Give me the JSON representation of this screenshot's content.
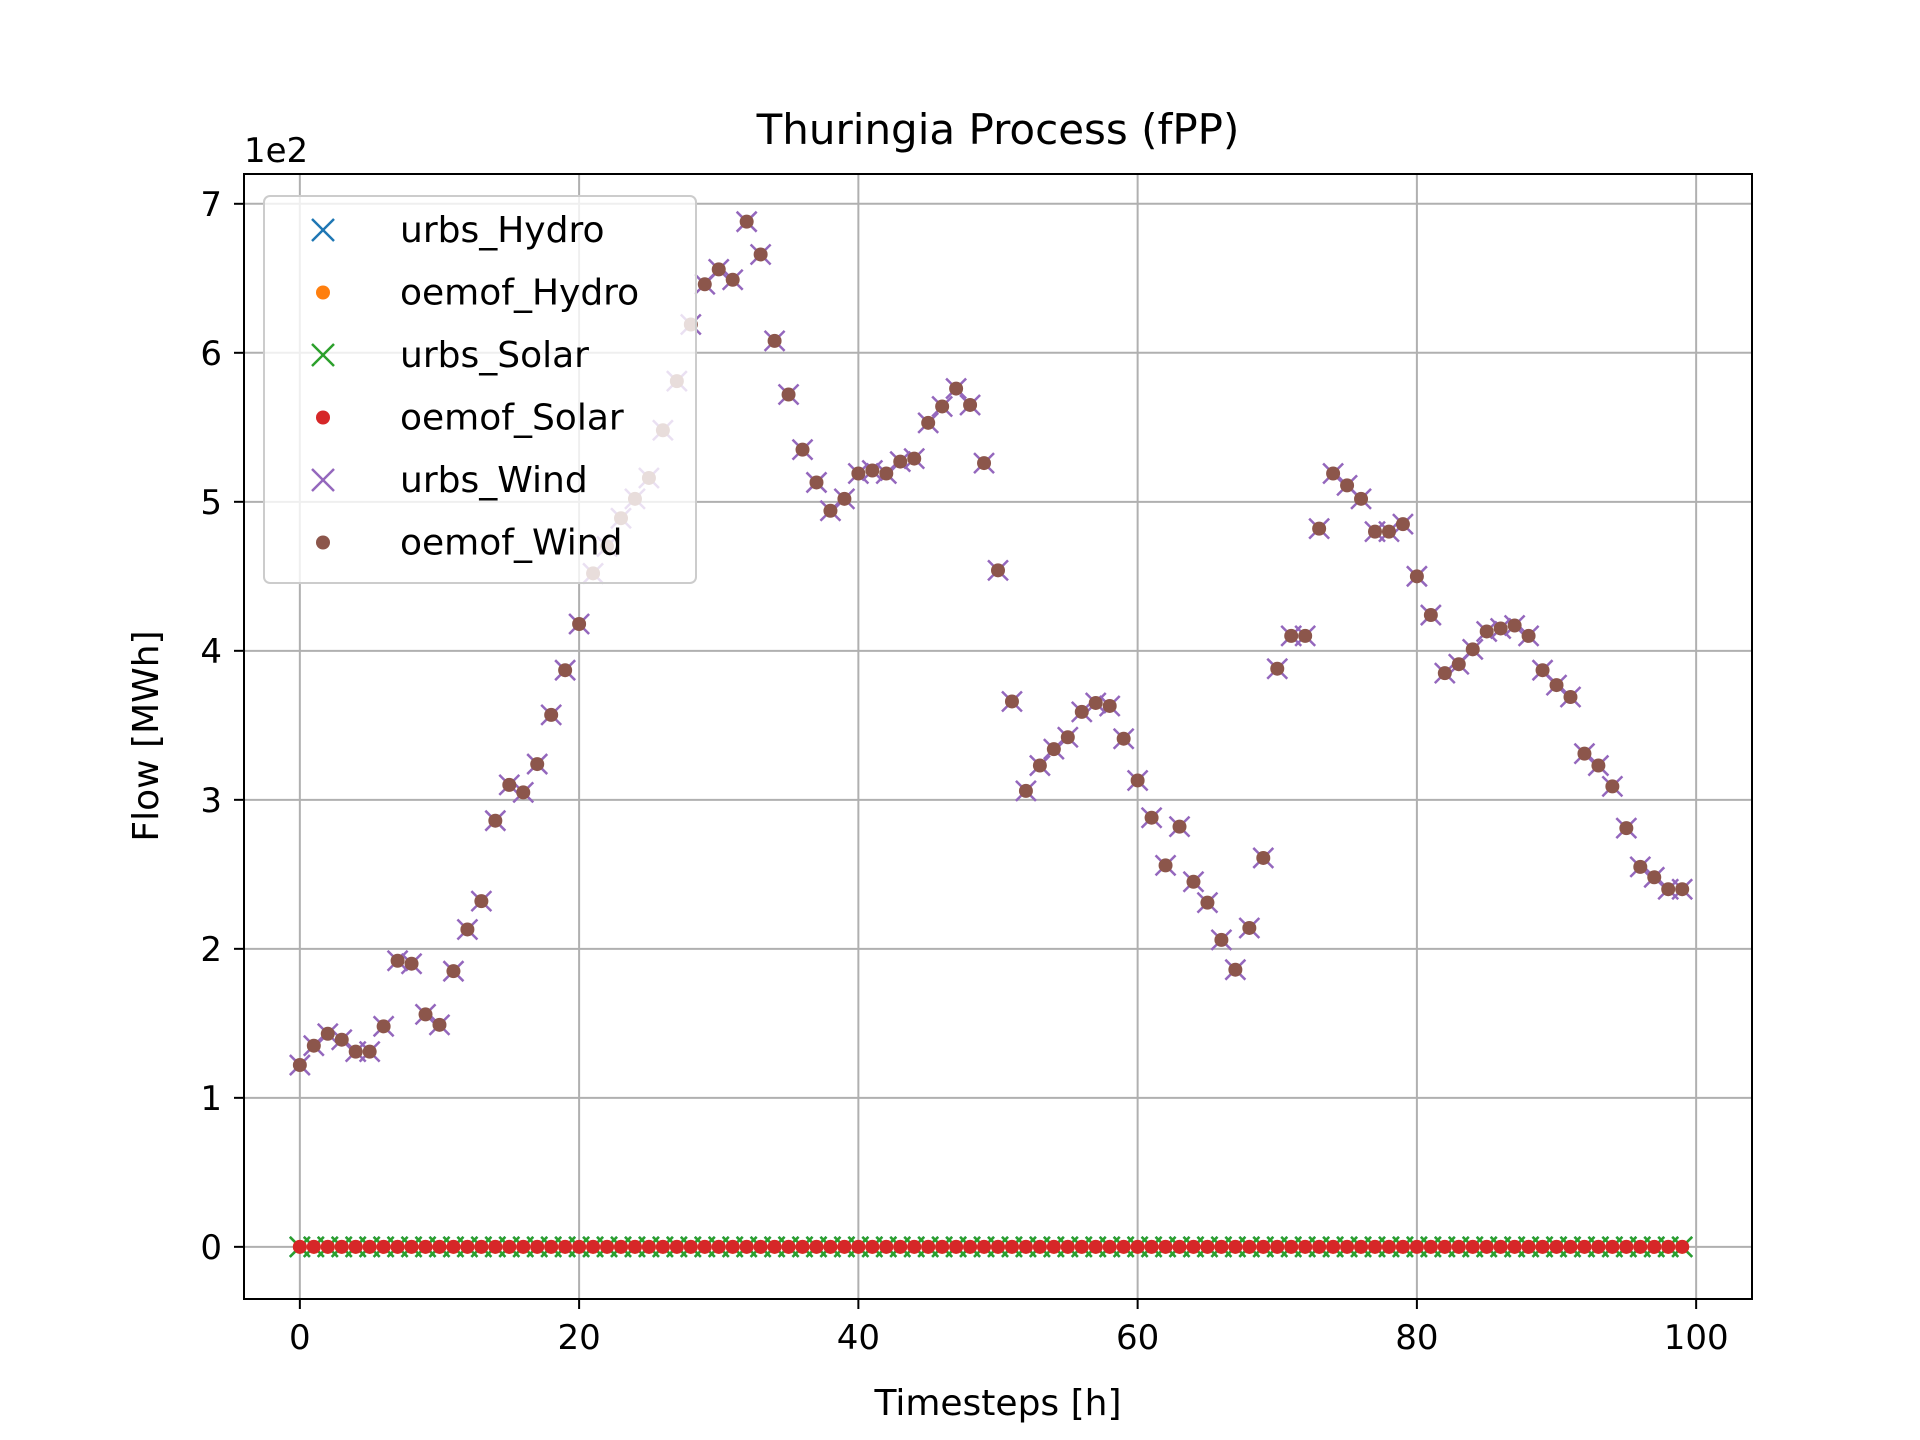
{
  "chart_data": {
    "type": "scatter",
    "title": "Thuringia Process (fPP)",
    "xlabel": "Timesteps [h]",
    "ylabel": "Flow [MWh]",
    "y_offset_text": "1e2",
    "xlim": [
      -4,
      104
    ],
    "ylim": [
      -0.35,
      7.2
    ],
    "xticks": [
      0,
      20,
      40,
      60,
      80,
      100
    ],
    "yticks": [
      0,
      1,
      2,
      3,
      4,
      5,
      6,
      7
    ],
    "grid": true,
    "legend_position": "upper-left",
    "x": [
      0,
      1,
      2,
      3,
      4,
      5,
      6,
      7,
      8,
      9,
      10,
      11,
      12,
      13,
      14,
      15,
      16,
      17,
      18,
      19,
      20,
      21,
      22,
      23,
      24,
      25,
      26,
      27,
      28,
      29,
      30,
      31,
      32,
      33,
      34,
      35,
      36,
      37,
      38,
      39,
      40,
      41,
      42,
      43,
      44,
      45,
      46,
      47,
      48,
      49,
      50,
      51,
      52,
      53,
      54,
      55,
      56,
      57,
      58,
      59,
      60,
      61,
      62,
      63,
      64,
      65,
      66,
      67,
      68,
      69,
      70,
      71,
      72,
      73,
      74,
      75,
      76,
      77,
      78,
      79,
      80,
      81,
      82,
      83,
      84,
      85,
      86,
      87,
      88,
      89,
      90,
      91,
      92,
      93,
      94,
      95,
      96,
      97,
      98,
      99
    ],
    "series": [
      {
        "name": "urbs_Hydro",
        "marker": "x",
        "color": "#1f77b4",
        "values": "zeros"
      },
      {
        "name": "oemof_Hydro",
        "marker": "dot",
        "color": "#ff7f0e",
        "values": "zeros"
      },
      {
        "name": "urbs_Solar",
        "marker": "x",
        "color": "#2ca02c",
        "values": "zeros"
      },
      {
        "name": "oemof_Solar",
        "marker": "dot",
        "color": "#d62728",
        "values": "zeros"
      },
      {
        "name": "urbs_Wind",
        "marker": "x",
        "color": "#9467bd",
        "values": "wind"
      },
      {
        "name": "oemof_Wind",
        "marker": "dot",
        "color": "#8c564b",
        "values": "wind"
      }
    ],
    "wind": [
      1.22,
      1.35,
      1.43,
      1.39,
      1.31,
      1.31,
      1.48,
      1.92,
      1.9,
      1.56,
      1.49,
      1.85,
      2.13,
      2.32,
      2.86,
      3.1,
      3.05,
      3.24,
      3.57,
      3.87,
      4.18,
      4.52,
      4.7,
      4.89,
      5.02,
      5.16,
      5.48,
      5.81,
      6.19,
      6.46,
      6.56,
      6.49,
      6.88,
      6.66,
      6.08,
      5.72,
      5.35,
      5.13,
      4.94,
      5.02,
      5.19,
      5.21,
      5.19,
      5.27,
      5.29,
      5.53,
      5.64,
      5.76,
      5.65,
      5.26,
      4.54,
      3.66,
      3.06,
      3.23,
      3.34,
      3.42,
      3.59,
      3.65,
      3.63,
      3.41,
      3.13,
      2.88,
      2.56,
      2.82,
      2.45,
      2.31,
      2.06,
      1.86,
      2.14,
      2.61,
      3.88,
      4.1,
      4.1,
      4.82,
      5.19,
      5.11,
      5.02,
      4.8,
      4.8,
      4.85,
      4.5,
      4.24,
      3.85,
      3.91,
      4.01,
      4.13,
      4.15,
      4.17,
      4.1,
      3.87,
      3.77,
      3.69,
      3.31,
      3.23,
      3.09,
      2.81,
      2.55,
      2.48,
      2.4,
      2.4
    ]
  }
}
